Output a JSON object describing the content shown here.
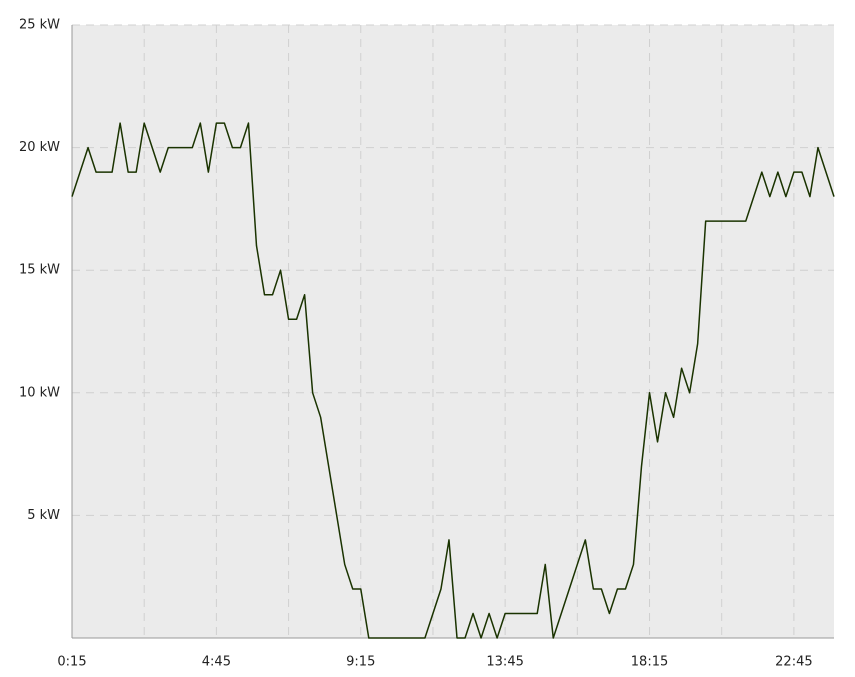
{
  "chart_data": {
    "type": "line",
    "categories": [
      "0:15",
      null,
      null,
      null,
      null,
      null,
      null,
      null,
      null,
      null,
      null,
      null,
      null,
      null,
      null,
      null,
      null,
      null,
      "4:45",
      null,
      null,
      null,
      null,
      null,
      null,
      null,
      null,
      null,
      null,
      null,
      null,
      null,
      null,
      null,
      null,
      null,
      "9:15",
      null,
      null,
      null,
      null,
      null,
      null,
      null,
      null,
      null,
      null,
      null,
      null,
      null,
      null,
      null,
      null,
      null,
      "13:45",
      null,
      null,
      null,
      null,
      null,
      null,
      null,
      null,
      null,
      null,
      null,
      null,
      null,
      null,
      null,
      null,
      null,
      "18:15",
      null,
      null,
      null,
      null,
      null,
      null,
      null,
      null,
      null,
      null,
      null,
      null,
      null,
      null,
      null,
      null,
      null,
      "22:45",
      null,
      null,
      null,
      null,
      null
    ],
    "series": [
      {
        "color": "#1a3300",
        "values": [
          18,
          19,
          20,
          19,
          19,
          19,
          21,
          19,
          19,
          21,
          20,
          19,
          20,
          20,
          20,
          20,
          21,
          19,
          21,
          21,
          20,
          20,
          21,
          16,
          14,
          14,
          15,
          13,
          13,
          14,
          10,
          9,
          7,
          5,
          3,
          2,
          2,
          0,
          0,
          0,
          0,
          0,
          0,
          0,
          0,
          1,
          2,
          4,
          0,
          0,
          1,
          0,
          1,
          0,
          1,
          1,
          1,
          1,
          1,
          3,
          0,
          1,
          2,
          3,
          4,
          2,
          2,
          1,
          2,
          2,
          3,
          7,
          10,
          8,
          10,
          9,
          11,
          10,
          12,
          17,
          17,
          17,
          17,
          17,
          17,
          18,
          19,
          18,
          19,
          18,
          19,
          19,
          18,
          20,
          19,
          18
        ]
      }
    ],
    "ylim": [
      0,
      25
    ],
    "yticks": [
      {
        "value": 5,
        "label": "5 kW"
      },
      {
        "value": 10,
        "label": "10 kW"
      },
      {
        "value": 15,
        "label": "15 kW"
      },
      {
        "value": 20,
        "label": "20 kW"
      },
      {
        "value": 25,
        "label": "25 kW"
      }
    ],
    "grid": true
  }
}
